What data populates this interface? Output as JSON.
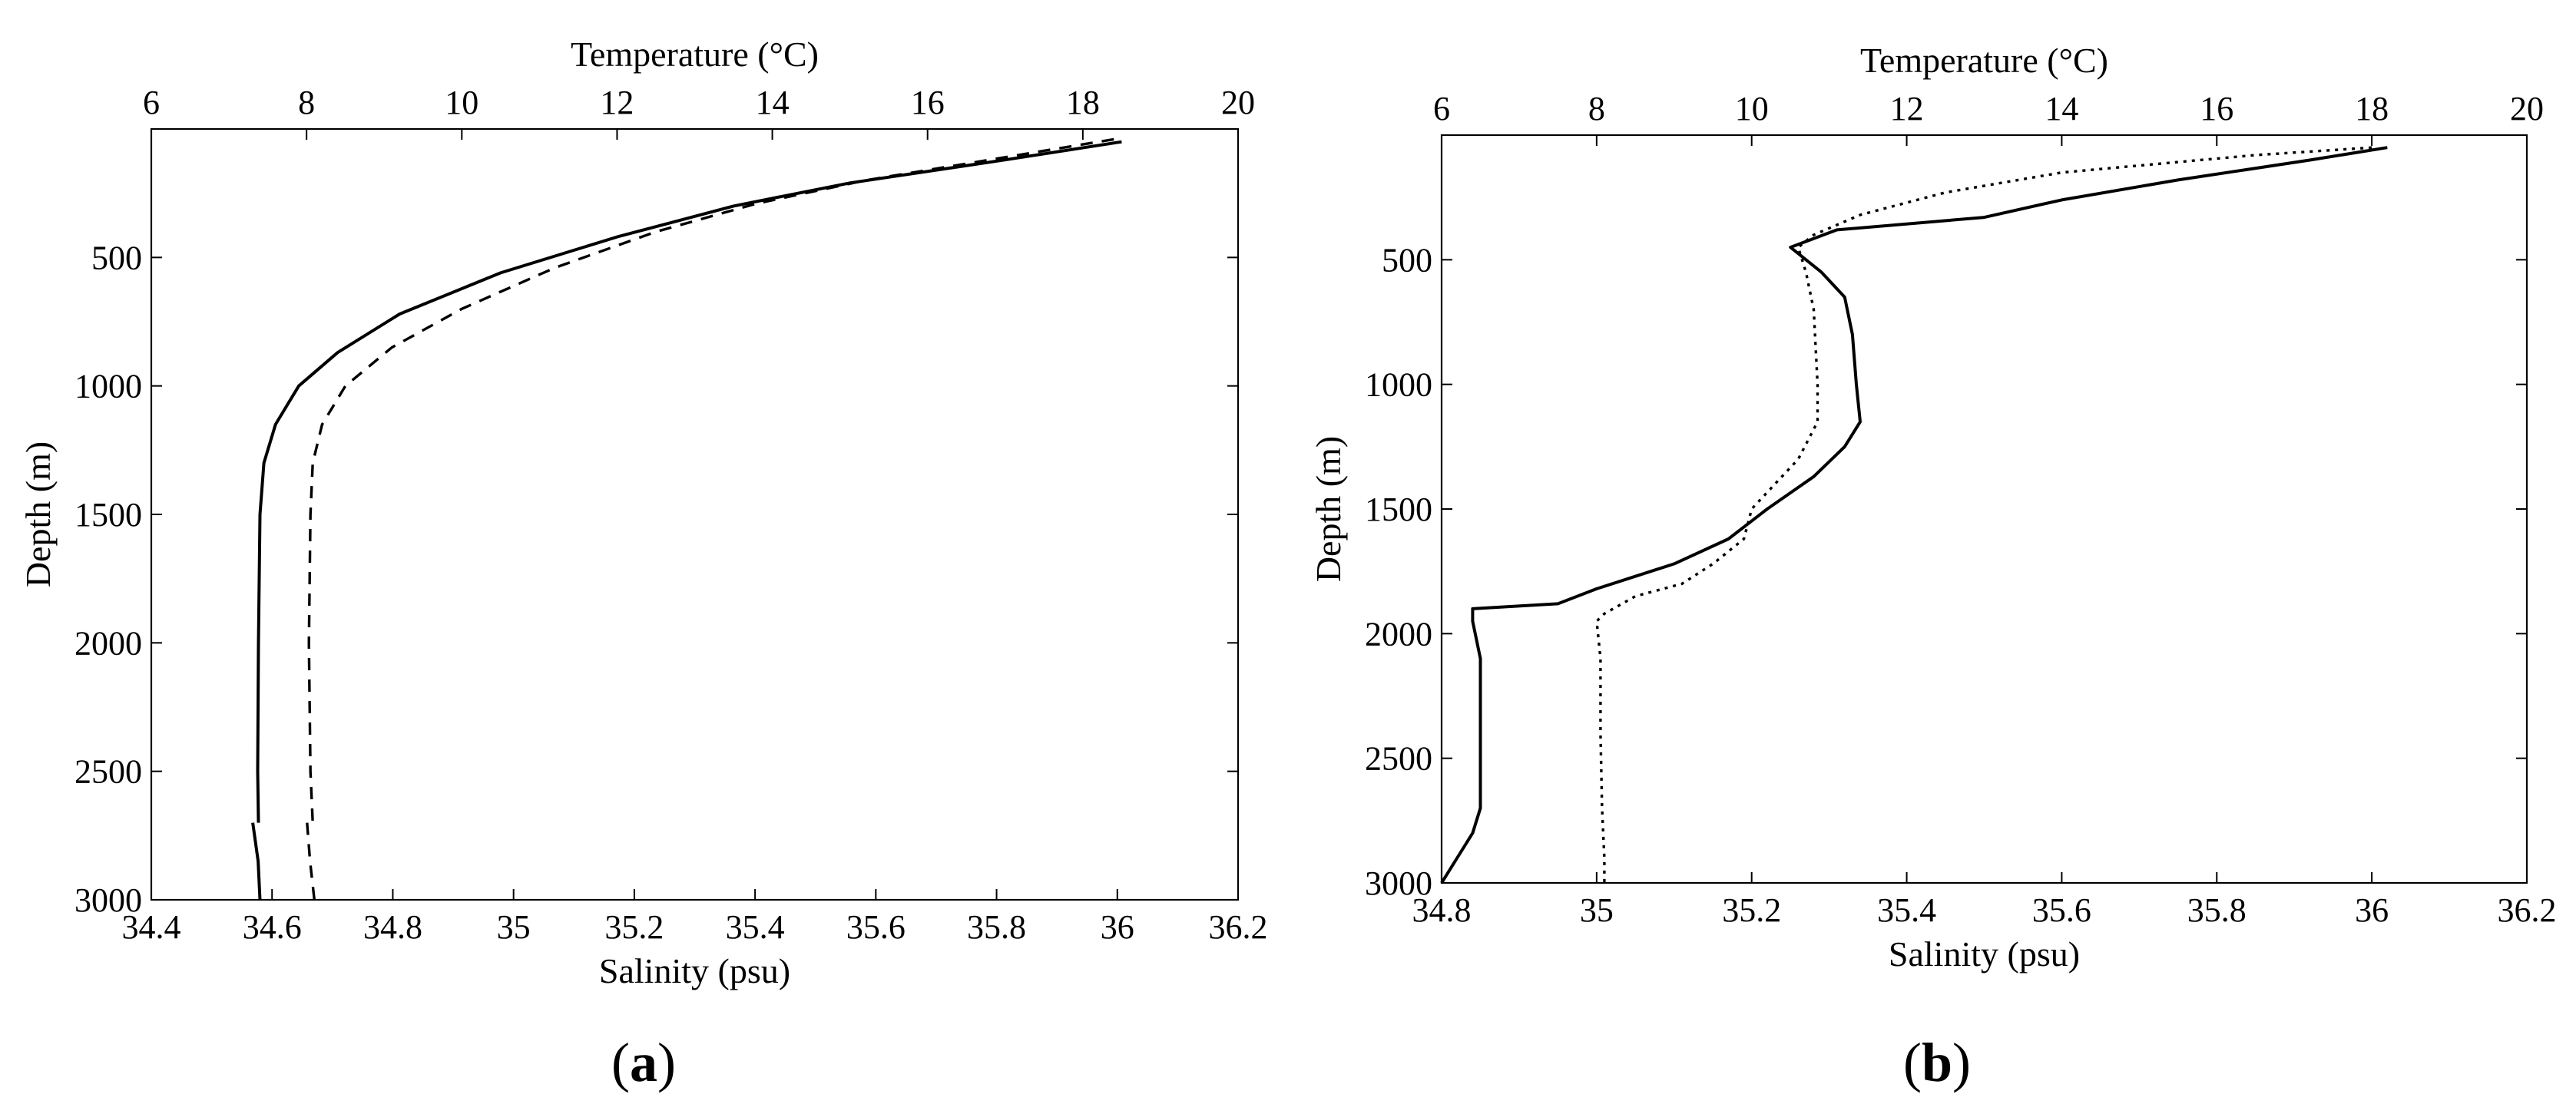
{
  "figure": {
    "panel_labels": [
      "(a)",
      "(b)"
    ]
  },
  "chart_data": [
    {
      "type": "line",
      "panel": "(a)",
      "top_axis_label": "Temperature (°C)",
      "xlabel": "Salinity (psu)",
      "ylabel": "Depth (m)",
      "top_axis_range": [
        6,
        20
      ],
      "top_axis_ticks": [
        "6",
        "8",
        "10",
        "12",
        "14",
        "16",
        "18",
        "20"
      ],
      "xlim": [
        34.4,
        36.2
      ],
      "x_ticks": [
        "34.4",
        "34.6",
        "34.8",
        "35",
        "35.2",
        "35.4",
        "35.6",
        "35.8",
        "36",
        "36.2"
      ],
      "ylim": [
        3000,
        0
      ],
      "y_ticks": [
        "500",
        "1000",
        "1500",
        "2000",
        "2500",
        "3000"
      ],
      "grid": false,
      "series": [
        {
          "style": "solid",
          "axis": "temperature",
          "points": [
            [
              18.5,
              50
            ],
            [
              17.0,
              120
            ],
            [
              15.0,
              210
            ],
            [
              13.5,
              300
            ],
            [
              12.0,
              420
            ],
            [
              10.5,
              560
            ],
            [
              9.2,
              720
            ],
            [
              8.4,
              870
            ],
            [
              7.9,
              1000
            ],
            [
              7.6,
              1150
            ],
            [
              7.45,
              1300
            ],
            [
              7.4,
              1500
            ],
            [
              7.38,
              2000
            ],
            [
              7.37,
              2500
            ],
            [
              7.38,
              2700
            ]
          ]
        },
        {
          "style": "solid",
          "axis": "salinity",
          "points": [
            [
              34.568,
              2700
            ],
            [
              34.577,
              2850
            ],
            [
              34.58,
              3000
            ]
          ]
        },
        {
          "style": "dashed",
          "axis": "temperature",
          "points": [
            [
              18.4,
              40
            ],
            [
              17.0,
              110
            ],
            [
              15.2,
              200
            ],
            [
              13.8,
              290
            ],
            [
              12.5,
              400
            ],
            [
              11.2,
              540
            ],
            [
              10.0,
              700
            ],
            [
              9.1,
              850
            ],
            [
              8.5,
              1000
            ],
            [
              8.2,
              1150
            ],
            [
              8.08,
              1300
            ],
            [
              8.05,
              1500
            ],
            [
              8.03,
              2000
            ],
            [
              8.05,
              2500
            ],
            [
              8.08,
              2700
            ]
          ]
        },
        {
          "style": "dashed",
          "axis": "salinity",
          "points": [
            [
              34.658,
              2700
            ],
            [
              34.663,
              2850
            ],
            [
              34.67,
              3000
            ]
          ]
        }
      ]
    },
    {
      "type": "line",
      "panel": "(b)",
      "top_axis_label": "Temperature (°C)",
      "xlabel": "Salinity (psu)",
      "ylabel": "Depth (m)",
      "top_axis_range": [
        6,
        20
      ],
      "top_axis_ticks": [
        "6",
        "8",
        "10",
        "12",
        "14",
        "16",
        "18",
        "20"
      ],
      "xlim": [
        34.8,
        36.2
      ],
      "x_ticks": [
        "34.8",
        "35",
        "35.2",
        "35.4",
        "35.6",
        "35.8",
        "36",
        "36.2"
      ],
      "ylim": [
        3000,
        0
      ],
      "y_ticks": [
        "500",
        "1000",
        "1500",
        "2000",
        "2500",
        "3000"
      ],
      "grid": false,
      "series": [
        {
          "style": "solid",
          "points": [
            [
              36.02,
              50
            ],
            [
              35.92,
              100
            ],
            [
              35.75,
              180
            ],
            [
              35.6,
              260
            ],
            [
              35.5,
              330
            ],
            [
              35.31,
              380
            ],
            [
              35.25,
              450
            ],
            [
              35.29,
              550
            ],
            [
              35.32,
              650
            ],
            [
              35.33,
              800
            ],
            [
              35.335,
              1000
            ],
            [
              35.34,
              1150
            ],
            [
              35.32,
              1250
            ],
            [
              35.28,
              1370
            ],
            [
              35.22,
              1500
            ],
            [
              35.17,
              1620
            ],
            [
              35.1,
              1720
            ],
            [
              35.0,
              1820
            ],
            [
              34.95,
              1880
            ],
            [
              34.84,
              1900
            ],
            [
              34.84,
              1950
            ],
            [
              34.85,
              2100
            ],
            [
              34.85,
              2400
            ],
            [
              34.85,
              2700
            ],
            [
              34.84,
              2800
            ],
            [
              34.82,
              2900
            ],
            [
              34.8,
              3000
            ]
          ]
        },
        {
          "style": "dotted",
          "points": [
            [
              36.0,
              50
            ],
            [
              35.85,
              80
            ],
            [
              35.6,
              150
            ],
            [
              35.45,
              230
            ],
            [
              35.34,
              320
            ],
            [
              35.28,
              400
            ],
            [
              35.26,
              450
            ],
            [
              35.27,
              550
            ],
            [
              35.28,
              700
            ],
            [
              35.285,
              1000
            ],
            [
              35.285,
              1150
            ],
            [
              35.26,
              1300
            ],
            [
              35.23,
              1400
            ],
            [
              35.2,
              1500
            ],
            [
              35.19,
              1620
            ],
            [
              35.15,
              1720
            ],
            [
              35.11,
              1800
            ],
            [
              35.05,
              1850
            ],
            [
              35.01,
              1920
            ],
            [
              35.0,
              1950
            ],
            [
              35.005,
              2100
            ],
            [
              35.005,
              2400
            ],
            [
              35.007,
              2700
            ],
            [
              35.01,
              2900
            ],
            [
              35.01,
              3000
            ]
          ]
        }
      ]
    }
  ]
}
